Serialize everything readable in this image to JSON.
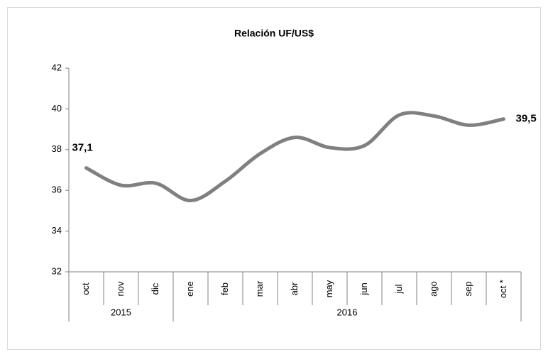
{
  "chart_data": {
    "type": "line",
    "title": "Relación UF/US$",
    "category_groups": [
      {
        "label": "2015",
        "categories": [
          "oct",
          "nov",
          "dic"
        ]
      },
      {
        "label": "2016",
        "categories": [
          "ene",
          "feb",
          "mar",
          "abr",
          "may",
          "jun",
          "jul",
          "ago",
          "sep",
          "oct *"
        ]
      }
    ],
    "values": [
      37.1,
      36.25,
      36.35,
      35.5,
      36.45,
      37.8,
      38.6,
      38.1,
      38.2,
      39.7,
      39.65,
      39.2,
      39.5
    ],
    "value_labels": [
      "37,1",
      null,
      null,
      null,
      null,
      null,
      null,
      null,
      null,
      null,
      null,
      null,
      "39,5"
    ],
    "color": "#808080",
    "ylim": [
      32,
      42
    ],
    "yticks": [
      32,
      34,
      36,
      38,
      40,
      42
    ],
    "grid": false
  }
}
